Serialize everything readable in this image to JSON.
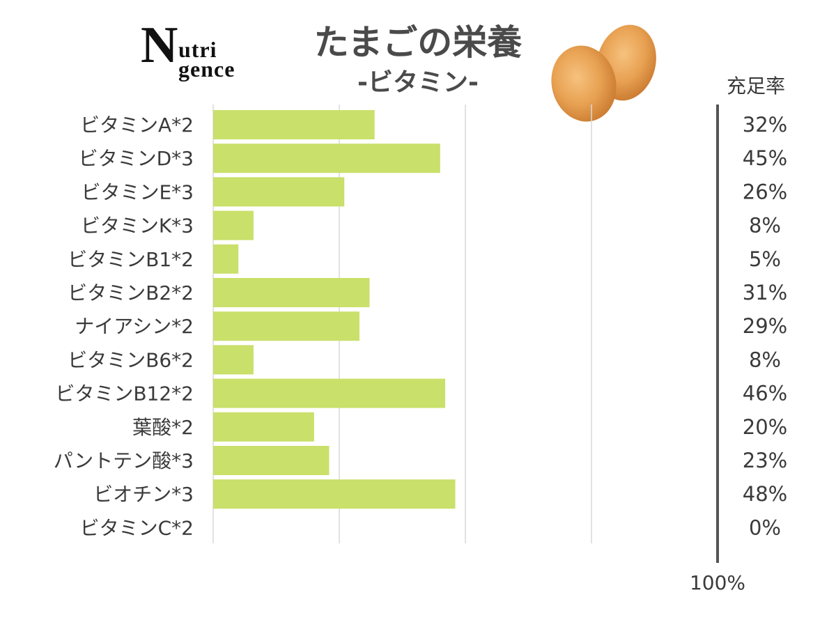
{
  "logo": {
    "big_letter": "N",
    "line1": "utri",
    "line2": "gence"
  },
  "rate_header": "充足率",
  "colors": {
    "bar": "#c9e06a",
    "grid": "#d9d9d9",
    "scale_line": "#555555",
    "text": "#3a3a3a",
    "egg": "#e39a4c"
  },
  "chart_data": {
    "type": "bar",
    "orientation": "horizontal",
    "title": "たまごの栄養",
    "subtitle": "-ビタミン-",
    "categories": [
      "ビタミンA*2",
      "ビタミンD*3",
      "ビタミンE*3",
      "ビタミンK*3",
      "ビタミンB1*2",
      "ビタミンB2*2",
      "ナイアシン*2",
      "ビタミンB6*2",
      "ビタミンB12*2",
      "葉酸*2",
      "パントテン酸*3",
      "ビオチン*3",
      "ビタミンC*2"
    ],
    "values": [
      32,
      45,
      26,
      8,
      5,
      31,
      29,
      8,
      46,
      20,
      23,
      48,
      0
    ],
    "value_labels": [
      "32%",
      "45%",
      "26%",
      "8%",
      "5%",
      "31%",
      "29%",
      "8%",
      "46%",
      "20%",
      "23%",
      "48%",
      "0%"
    ],
    "xlim": [
      0,
      100
    ],
    "max_label": "100%",
    "grid": true
  }
}
